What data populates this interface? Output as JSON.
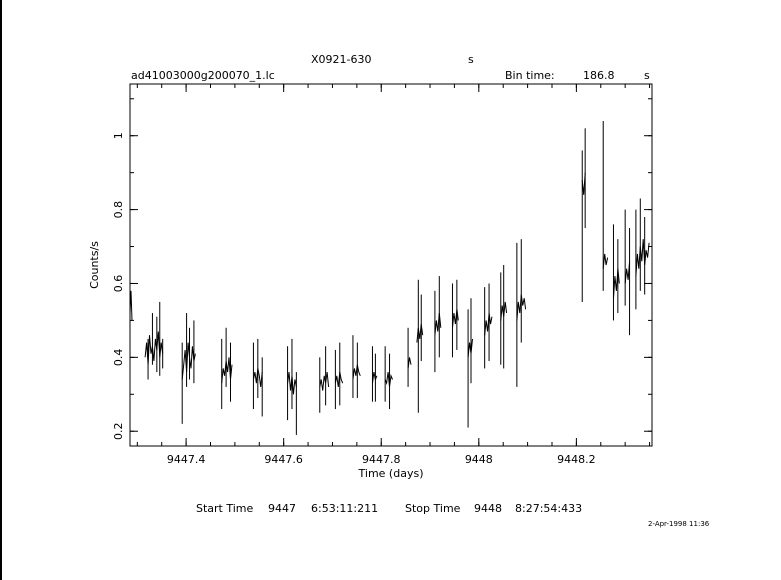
{
  "header": {
    "source": "X0921-630",
    "source_unit": "s",
    "filename": "ad41003000g200070_1.lc",
    "bin_label": "Bin time:",
    "bin_value": "186.8",
    "bin_unit": "s"
  },
  "footer": {
    "start_label": "Start Time",
    "start_day": "9447",
    "start_time": "6:53:11:211",
    "stop_label": "Stop Time",
    "stop_day": "9448",
    "stop_time": "8:27:54:433",
    "date_stamp": "2-Apr-1998 11:36"
  },
  "chart_data": {
    "type": "line",
    "title": "X0921-630",
    "xlabel": "Time (days)",
    "ylabel": "Counts/s",
    "xlim": [
      9447.285,
      9448.355
    ],
    "ylim": [
      0.16,
      1.14
    ],
    "x_ticks": [
      9447.4,
      9447.6,
      9447.8,
      9448,
      9448.2
    ],
    "x_tick_labels": [
      "9447.4",
      "9447.6",
      "9447.8",
      "9448",
      "9448.2"
    ],
    "y_ticks": [
      0.2,
      0.4,
      0.6,
      0.8,
      1
    ],
    "y_tick_labels": [
      "0.2",
      "0.4",
      "0.6",
      "0.8",
      "1"
    ],
    "series": [
      {
        "segments": [
          {
            "x": [
              9447.285,
              9447.287,
              9447.289
            ],
            "y": [
              0.52,
              0.58,
              0.5
            ]
          },
          {
            "x": [
              9447.316,
              9447.319,
              9447.322,
              9447.325,
              9447.328,
              9447.331,
              9447.334,
              9447.337,
              9447.34,
              9447.343,
              9447.346,
              9447.349,
              9447.352
            ],
            "y": [
              0.4,
              0.44,
              0.38,
              0.46,
              0.41,
              0.43,
              0.39,
              0.45,
              0.42,
              0.47,
              0.4,
              0.44,
              0.41
            ]
          },
          {
            "x": [
              9447.392,
              9447.395,
              9447.398,
              9447.401,
              9447.404,
              9447.407,
              9447.41,
              9447.413,
              9447.416,
              9447.419
            ],
            "y": [
              0.34,
              0.38,
              0.42,
              0.36,
              0.44,
              0.4,
              0.37,
              0.43,
              0.39,
              0.41
            ]
          },
          {
            "x": [
              9447.473,
              9447.476,
              9447.479,
              9447.482,
              9447.485,
              9447.488,
              9447.491,
              9447.494
            ],
            "y": [
              0.33,
              0.37,
              0.35,
              0.39,
              0.36,
              0.4,
              0.34,
              0.38
            ]
          },
          {
            "x": [
              9447.538,
              9447.541,
              9447.544,
              9447.547,
              9447.55,
              9447.553,
              9447.556
            ],
            "y": [
              0.34,
              0.36,
              0.33,
              0.37,
              0.35,
              0.32,
              0.36
            ]
          },
          {
            "x": [
              9447.608,
              9447.611,
              9447.614,
              9447.617,
              9447.62,
              9447.623,
              9447.626
            ],
            "y": [
              0.33,
              0.36,
              0.31,
              0.35,
              0.3,
              0.34,
              0.32
            ]
          },
          {
            "x": [
              9447.674,
              9447.677,
              9447.68,
              9447.683,
              9447.686,
              9447.689,
              9447.692
            ],
            "y": [
              0.32,
              0.34,
              0.31,
              0.35,
              0.33,
              0.36,
              0.32
            ]
          },
          {
            "x": [
              9447.706,
              9447.709,
              9447.712,
              9447.715,
              9447.718,
              9447.721
            ],
            "y": [
              0.33,
              0.35,
              0.32,
              0.36,
              0.34,
              0.33
            ]
          },
          {
            "x": [
              9447.742,
              9447.745,
              9447.748,
              9447.751,
              9447.754,
              9447.757
            ],
            "y": [
              0.34,
              0.37,
              0.35,
              0.38,
              0.36,
              0.35
            ]
          },
          {
            "x": [
              9447.782,
              9447.785,
              9447.788,
              9447.791
            ],
            "y": [
              0.33,
              0.36,
              0.34,
              0.35
            ]
          },
          {
            "x": [
              9447.808,
              9447.811,
              9447.814,
              9447.817,
              9447.82,
              9447.823
            ],
            "y": [
              0.34,
              0.33,
              0.36,
              0.32,
              0.35,
              0.34
            ]
          },
          {
            "x": [
              9447.855,
              9447.858,
              9447.861
            ],
            "y": [
              0.37,
              0.4,
              0.38
            ]
          },
          {
            "x": [
              9447.873,
              9447.876,
              9447.879,
              9447.882,
              9447.885
            ],
            "y": [
              0.44,
              0.48,
              0.45,
              0.49,
              0.46
            ]
          },
          {
            "x": [
              9447.91,
              9447.913,
              9447.916,
              9447.919,
              9447.922
            ],
            "y": [
              0.46,
              0.5,
              0.47,
              0.52,
              0.48
            ]
          },
          {
            "x": [
              9447.946,
              9447.949,
              9447.952,
              9447.955,
              9447.958
            ],
            "y": [
              0.48,
              0.52,
              0.49,
              0.53,
              0.5
            ]
          },
          {
            "x": [
              9447.978,
              9447.981,
              9447.984,
              9447.987
            ],
            "y": [
              0.4,
              0.44,
              0.41,
              0.45
            ]
          },
          {
            "x": [
              9448.012,
              9448.015,
              9448.018,
              9448.021,
              9448.024,
              9448.027
            ],
            "y": [
              0.46,
              0.5,
              0.47,
              0.52,
              0.49,
              0.51
            ]
          },
          {
            "x": [
              9448.045,
              9448.048,
              9448.051,
              9448.054,
              9448.057
            ],
            "y": [
              0.5,
              0.54,
              0.51,
              0.55,
              0.52
            ]
          },
          {
            "x": [
              9448.078,
              9448.081,
              9448.084,
              9448.087,
              9448.09,
              9448.093,
              9448.096
            ],
            "y": [
              0.5,
              0.55,
              0.52,
              0.57,
              0.54,
              0.56,
              0.53
            ]
          },
          {
            "x": [
              9448.212,
              9448.215,
              9448.218
            ],
            "y": [
              0.88,
              0.84,
              0.9
            ]
          },
          {
            "x": [
              9448.255,
              9448.258,
              9448.261,
              9448.264
            ],
            "y": [
              0.64,
              0.68,
              0.65,
              0.67
            ]
          },
          {
            "x": [
              9448.276,
              9448.279,
              9448.282,
              9448.285,
              9448.288
            ],
            "y": [
              0.56,
              0.62,
              0.58,
              0.64,
              0.6
            ]
          },
          {
            "x": [
              9448.3,
              9448.303,
              9448.306,
              9448.309
            ],
            "y": [
              0.6,
              0.64,
              0.61,
              0.66
            ]
          },
          {
            "x": [
              9448.322,
              9448.325,
              9448.328,
              9448.331,
              9448.334,
              9448.337,
              9448.34,
              9448.343,
              9448.346,
              9448.349
            ],
            "y": [
              0.62,
              0.68,
              0.64,
              0.7,
              0.66,
              0.72,
              0.65,
              0.69,
              0.67,
              0.71
            ]
          }
        ],
        "error_bars": [
          [
            9447.285,
            0.45,
            0.61
          ],
          [
            9447.322,
            0.34,
            0.45
          ],
          [
            9447.331,
            0.38,
            0.52
          ],
          [
            9447.34,
            0.36,
            0.51
          ],
          [
            9447.346,
            0.35,
            0.55
          ],
          [
            9447.352,
            0.37,
            0.45
          ],
          [
            9447.392,
            0.22,
            0.44
          ],
          [
            9447.401,
            0.32,
            0.52
          ],
          [
            9447.407,
            0.34,
            0.48
          ],
          [
            9447.416,
            0.33,
            0.5
          ],
          [
            9447.473,
            0.26,
            0.45
          ],
          [
            9447.482,
            0.32,
            0.48
          ],
          [
            9447.491,
            0.28,
            0.44
          ],
          [
            9447.538,
            0.26,
            0.44
          ],
          [
            9447.547,
            0.29,
            0.45
          ],
          [
            9447.556,
            0.24,
            0.4
          ],
          [
            9447.608,
            0.23,
            0.43
          ],
          [
            9447.617,
            0.26,
            0.45
          ],
          [
            9447.626,
            0.19,
            0.36
          ],
          [
            9447.674,
            0.25,
            0.4
          ],
          [
            9447.686,
            0.27,
            0.43
          ],
          [
            9447.706,
            0.26,
            0.42
          ],
          [
            9447.715,
            0.27,
            0.44
          ],
          [
            9447.742,
            0.29,
            0.46
          ],
          [
            9447.751,
            0.29,
            0.44
          ],
          [
            9447.782,
            0.28,
            0.43
          ],
          [
            9447.788,
            0.28,
            0.41
          ],
          [
            9447.808,
            0.28,
            0.43
          ],
          [
            9447.817,
            0.26,
            0.41
          ],
          [
            9447.855,
            0.32,
            0.48
          ],
          [
            9447.876,
            0.25,
            0.61
          ],
          [
            9447.882,
            0.39,
            0.57
          ],
          [
            9447.91,
            0.36,
            0.58
          ],
          [
            9447.919,
            0.4,
            0.62
          ],
          [
            9447.946,
            0.4,
            0.6
          ],
          [
            9447.955,
            0.42,
            0.61
          ],
          [
            9447.978,
            0.21,
            0.53
          ],
          [
            9447.984,
            0.33,
            0.56
          ],
          [
            9448.012,
            0.37,
            0.59
          ],
          [
            9448.021,
            0.39,
            0.6
          ],
          [
            9448.045,
            0.38,
            0.63
          ],
          [
            9448.051,
            0.37,
            0.65
          ],
          [
            9448.078,
            0.32,
            0.71
          ],
          [
            9448.087,
            0.44,
            0.72
          ],
          [
            9448.212,
            0.55,
            0.96
          ],
          [
            9448.218,
            0.75,
            1.02
          ],
          [
            9448.255,
            0.58,
            1.04
          ],
          [
            9448.276,
            0.5,
            0.76
          ],
          [
            9448.285,
            0.52,
            0.72
          ],
          [
            9448.3,
            0.54,
            0.8
          ],
          [
            9448.309,
            0.46,
            0.75
          ],
          [
            9448.322,
            0.53,
            0.8
          ],
          [
            9448.331,
            0.58,
            0.83
          ],
          [
            9448.34,
            0.57,
            0.78
          ]
        ]
      }
    ]
  }
}
